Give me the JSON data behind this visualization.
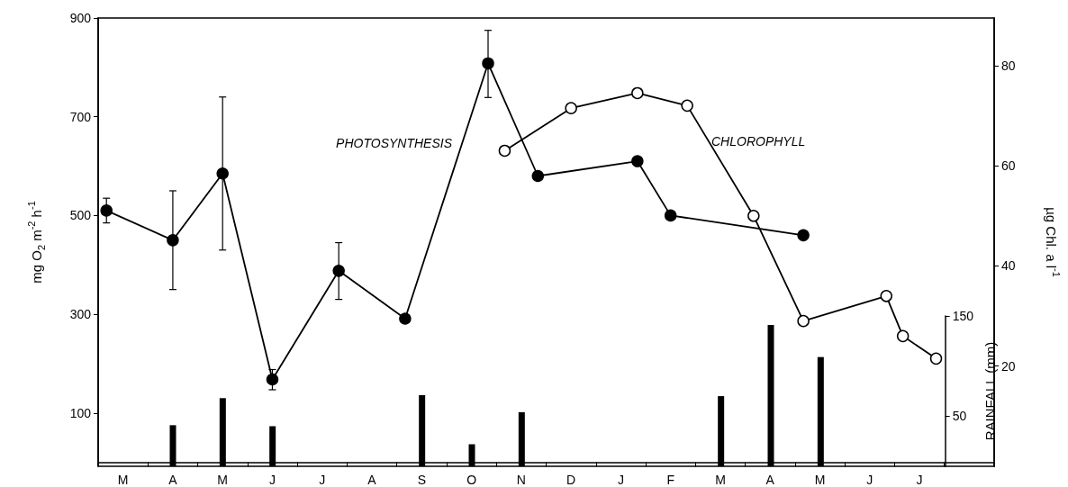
{
  "chart_data": {
    "type": "line",
    "ylabel": "mg O$_{2}$ m$^{-2}$ h$^{-1}$",
    "y2label": "µg Chl. a l$^{-1}$",
    "y3label": "RAINFALL (mm)",
    "categories": [
      null,
      "M",
      null,
      null,
      "A",
      null,
      null,
      "M",
      null,
      null,
      "J",
      null,
      null,
      "J",
      null,
      null,
      "A",
      null,
      null,
      "S",
      null,
      null,
      "O",
      null,
      null,
      "N",
      null,
      null,
      "D",
      null,
      null,
      "J",
      null,
      null,
      "F",
      null,
      null,
      "M",
      null,
      null,
      "A",
      null,
      null,
      "M",
      null,
      null,
      "J",
      null,
      null,
      "J",
      null,
      null,
      null,
      null
    ],
    "ylim": [
      -8,
      900
    ],
    "yticks": [
      100,
      300,
      500,
      700,
      900
    ],
    "y2lim": [
      0,
      89.5
    ],
    "y2ticks": [
      20,
      40,
      60,
      80
    ],
    "y3lim": [
      0,
      150
    ],
    "y3ticks": [
      50,
      150
    ],
    "grid": false,
    "legend": false,
    "marker": "circle",
    "series": [
      {
        "name": "PHOTOSYNTHESIS",
        "color": "#000000",
        "values": [
          510,
          null,
          null,
          null,
          450,
          null,
          null,
          585,
          null,
          null,
          168,
          null,
          null,
          null,
          388,
          null,
          null,
          null,
          291,
          null,
          null,
          null,
          null,
          808,
          null,
          null,
          580,
          null,
          null,
          null,
          null,
          null,
          610,
          null,
          500,
          null,
          null,
          null,
          null,
          null,
          null,
          null,
          460,
          null,
          null,
          null,
          null,
          null,
          null,
          null,
          null,
          null,
          null,
          null
        ],
        "errors": [
          [
            485,
            535
          ],
          null,
          null,
          null,
          [
            350,
            550
          ],
          null,
          null,
          [
            430,
            740
          ],
          null,
          null,
          [
            147,
            188
          ],
          null,
          null,
          null,
          [
            330,
            445
          ],
          null,
          null,
          null,
          null,
          null,
          null,
          null,
          null,
          [
            739,
            875
          ],
          null,
          null,
          null,
          null,
          null,
          null,
          null,
          null,
          null,
          null,
          null,
          null,
          null,
          null,
          null,
          null,
          null,
          null,
          null,
          null,
          null,
          null,
          null,
          null,
          null,
          null,
          null,
          null,
          null,
          null
        ]
      },
      {
        "name": "CHLOROPHYLL",
        "axis": "y2",
        "color": "#000000",
        "values": [
          null,
          null,
          null,
          null,
          null,
          null,
          null,
          null,
          null,
          null,
          null,
          null,
          null,
          null,
          null,
          null,
          null,
          null,
          null,
          null,
          null,
          null,
          null,
          null,
          63,
          null,
          null,
          null,
          71.5,
          null,
          null,
          null,
          74.5,
          null,
          null,
          72,
          null,
          null,
          null,
          50,
          null,
          null,
          29,
          null,
          null,
          null,
          null,
          34,
          26,
          null,
          21.5,
          null,
          null,
          null
        ]
      },
      {
        "type": "bar",
        "axis": "y3",
        "color": "#000000",
        "values": [
          null,
          null,
          null,
          null,
          41,
          null,
          null,
          68,
          null,
          null,
          40,
          null,
          null,
          null,
          null,
          null,
          null,
          null,
          null,
          71,
          null,
          null,
          22,
          null,
          null,
          54,
          null,
          null,
          null,
          null,
          null,
          null,
          null,
          null,
          null,
          null,
          null,
          70,
          null,
          null,
          141,
          null,
          null,
          109,
          null,
          null,
          null,
          null,
          null,
          null,
          null,
          null,
          null,
          null
        ]
      }
    ]
  }
}
